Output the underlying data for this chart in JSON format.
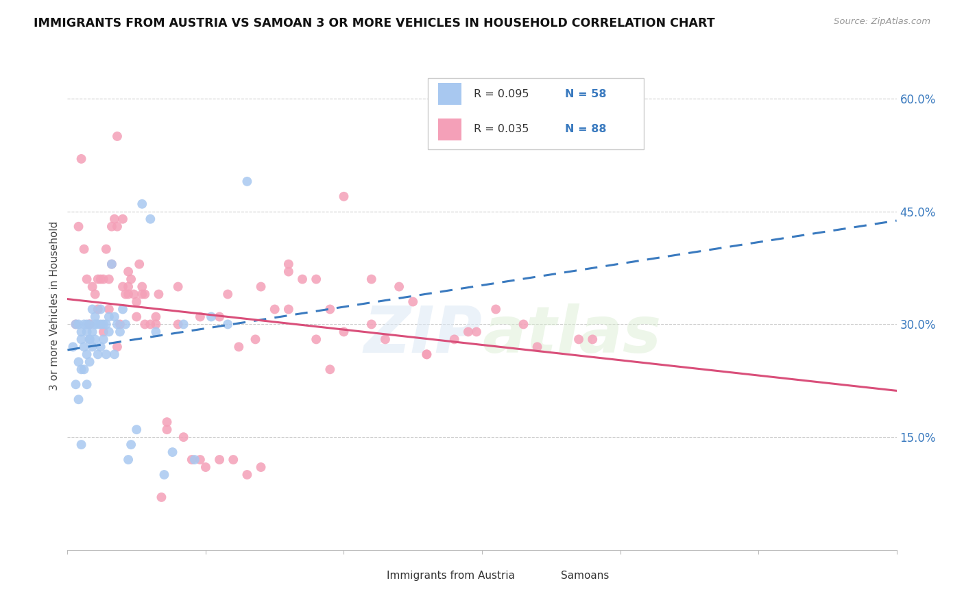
{
  "title": "IMMIGRANTS FROM AUSTRIA VS SAMOAN 3 OR MORE VEHICLES IN HOUSEHOLD CORRELATION CHART",
  "source": "Source: ZipAtlas.com",
  "ylabel": "3 or more Vehicles in Household",
  "austria_label": "Immigrants from Austria",
  "samoan_label": "Samoans",
  "austria_dot_color": "#a8c8f0",
  "samoan_dot_color": "#f4a0b8",
  "austria_line_color": "#3a7abf",
  "samoan_line_color": "#d94f7a",
  "ytick_vals": [
    0.15,
    0.3,
    0.45,
    0.6
  ],
  "xlim": [
    0.0,
    0.3
  ],
  "ylim": [
    0.0,
    0.65
  ],
  "austria_x": [
    0.002,
    0.003,
    0.003,
    0.004,
    0.004,
    0.004,
    0.005,
    0.005,
    0.005,
    0.005,
    0.006,
    0.006,
    0.006,
    0.007,
    0.007,
    0.007,
    0.007,
    0.008,
    0.008,
    0.008,
    0.008,
    0.009,
    0.009,
    0.009,
    0.01,
    0.01,
    0.01,
    0.011,
    0.011,
    0.012,
    0.012,
    0.012,
    0.013,
    0.013,
    0.014,
    0.014,
    0.015,
    0.015,
    0.016,
    0.017,
    0.017,
    0.018,
    0.019,
    0.02,
    0.021,
    0.022,
    0.023,
    0.025,
    0.027,
    0.03,
    0.032,
    0.035,
    0.038,
    0.042,
    0.046,
    0.052,
    0.058,
    0.065
  ],
  "austria_y": [
    0.27,
    0.3,
    0.22,
    0.3,
    0.25,
    0.2,
    0.29,
    0.28,
    0.24,
    0.14,
    0.3,
    0.27,
    0.24,
    0.3,
    0.29,
    0.26,
    0.22,
    0.3,
    0.28,
    0.28,
    0.25,
    0.32,
    0.29,
    0.27,
    0.31,
    0.3,
    0.28,
    0.3,
    0.26,
    0.32,
    0.3,
    0.27,
    0.3,
    0.28,
    0.3,
    0.26,
    0.31,
    0.29,
    0.38,
    0.31,
    0.26,
    0.3,
    0.29,
    0.32,
    0.3,
    0.12,
    0.14,
    0.16,
    0.46,
    0.44,
    0.29,
    0.1,
    0.13,
    0.3,
    0.12,
    0.31,
    0.3,
    0.49
  ],
  "samoan_x": [
    0.003,
    0.004,
    0.005,
    0.006,
    0.007,
    0.008,
    0.009,
    0.01,
    0.011,
    0.012,
    0.013,
    0.014,
    0.015,
    0.016,
    0.017,
    0.018,
    0.019,
    0.02,
    0.021,
    0.022,
    0.023,
    0.024,
    0.025,
    0.026,
    0.027,
    0.028,
    0.03,
    0.032,
    0.034,
    0.036,
    0.04,
    0.045,
    0.05,
    0.055,
    0.06,
    0.065,
    0.07,
    0.075,
    0.08,
    0.085,
    0.09,
    0.095,
    0.1,
    0.11,
    0.12,
    0.13,
    0.14,
    0.155,
    0.17,
    0.185,
    0.013,
    0.016,
    0.018,
    0.02,
    0.022,
    0.025,
    0.028,
    0.032,
    0.036,
    0.042,
    0.048,
    0.055,
    0.062,
    0.07,
    0.08,
    0.09,
    0.1,
    0.115,
    0.13,
    0.148,
    0.008,
    0.011,
    0.015,
    0.018,
    0.022,
    0.027,
    0.033,
    0.04,
    0.048,
    0.058,
    0.068,
    0.08,
    0.095,
    0.11,
    0.125,
    0.145,
    0.165,
    0.19
  ],
  "samoan_y": [
    0.3,
    0.43,
    0.52,
    0.4,
    0.36,
    0.3,
    0.35,
    0.34,
    0.36,
    0.36,
    0.36,
    0.4,
    0.36,
    0.38,
    0.44,
    0.43,
    0.3,
    0.35,
    0.34,
    0.35,
    0.36,
    0.34,
    0.33,
    0.38,
    0.35,
    0.34,
    0.3,
    0.31,
    0.07,
    0.17,
    0.3,
    0.12,
    0.11,
    0.31,
    0.12,
    0.1,
    0.11,
    0.32,
    0.37,
    0.36,
    0.28,
    0.24,
    0.47,
    0.36,
    0.35,
    0.26,
    0.28,
    0.32,
    0.27,
    0.28,
    0.29,
    0.43,
    0.55,
    0.44,
    0.34,
    0.31,
    0.3,
    0.3,
    0.16,
    0.15,
    0.12,
    0.12,
    0.27,
    0.35,
    0.38,
    0.36,
    0.29,
    0.28,
    0.26,
    0.29,
    0.3,
    0.32,
    0.32,
    0.27,
    0.37,
    0.34,
    0.34,
    0.35,
    0.31,
    0.34,
    0.28,
    0.32,
    0.32,
    0.3,
    0.33,
    0.29,
    0.3,
    0.28
  ]
}
